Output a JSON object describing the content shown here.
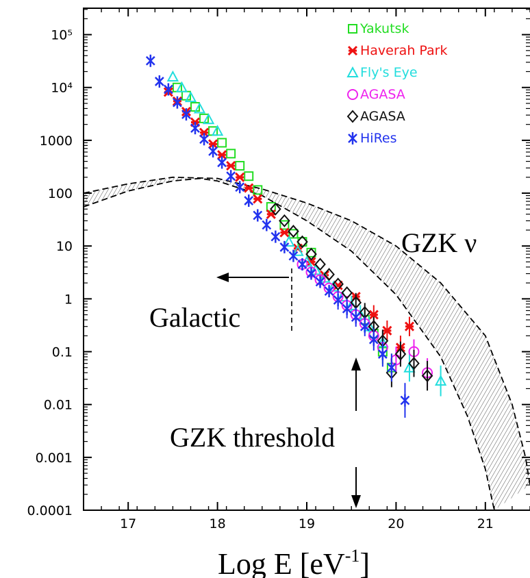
{
  "chart_data": {
    "type": "scatter",
    "xlabel": "Log E [eV",
    "xlabel_sup": "-1",
    "xlabel_end": "]",
    "x_ticks": [
      "17",
      "18",
      "19",
      "20",
      "21"
    ],
    "y_ticks": [
      "0.0001",
      "0.001",
      "0.01",
      "0.1",
      "1",
      "10",
      "100",
      "1000",
      "10⁴",
      "10⁵"
    ],
    "xlim": [
      16.5,
      21.5
    ],
    "ylim": [
      0.0001,
      316227
    ],
    "yscale": "log",
    "legend_position": "top-right",
    "series": [
      {
        "name": "Yakutsk",
        "marker": "square",
        "color": "#22dd22",
        "points": [
          [
            17.55,
            10000
          ],
          [
            17.65,
            7000
          ],
          [
            17.75,
            4300
          ],
          [
            17.85,
            2600
          ],
          [
            17.95,
            1500
          ],
          [
            18.05,
            900
          ],
          [
            18.15,
            560
          ],
          [
            18.25,
            330
          ],
          [
            18.35,
            210
          ],
          [
            18.45,
            115
          ],
          [
            18.6,
            55
          ],
          [
            18.75,
            25
          ],
          [
            18.85,
            17
          ],
          [
            18.95,
            12
          ],
          [
            19.05,
            7.5
          ],
          [
            19.65,
            0.4
          ],
          [
            19.75,
            0.22
          ],
          [
            19.85,
            0.1
          ],
          [
            19.95,
            0.05
          ]
        ]
      },
      {
        "name": "Haverah Park",
        "marker": "x-bold",
        "color": "#ee1111",
        "points": [
          [
            17.45,
            8200
          ],
          [
            17.55,
            5500
          ],
          [
            17.65,
            3500
          ],
          [
            17.75,
            2200
          ],
          [
            17.85,
            1400
          ],
          [
            17.95,
            850
          ],
          [
            18.05,
            530
          ],
          [
            18.15,
            330
          ],
          [
            18.25,
            200
          ],
          [
            18.35,
            125
          ],
          [
            18.45,
            78
          ],
          [
            18.6,
            40
          ],
          [
            18.75,
            18
          ],
          [
            18.9,
            9
          ],
          [
            19.05,
            5
          ],
          [
            19.2,
            2.8
          ],
          [
            19.35,
            1.8
          ],
          [
            19.55,
            1.1
          ],
          [
            19.75,
            0.5
          ],
          [
            19.9,
            0.25
          ],
          [
            20.05,
            0.12
          ],
          [
            20.15,
            0.3
          ]
        ]
      },
      {
        "name": "Fly's Eye",
        "marker": "triangle",
        "color": "#22dddd",
        "points": [
          [
            17.5,
            16000
          ],
          [
            17.6,
            10000
          ],
          [
            17.7,
            6500
          ],
          [
            17.8,
            4000
          ],
          [
            17.9,
            2500
          ],
          [
            18.0,
            1500
          ],
          [
            18.8,
            12
          ],
          [
            18.9,
            8
          ],
          [
            19.0,
            5
          ],
          [
            19.1,
            3.5
          ],
          [
            19.2,
            2.5
          ],
          [
            19.3,
            1.7
          ],
          [
            19.4,
            1.1
          ],
          [
            19.5,
            0.75
          ],
          [
            19.6,
            0.5
          ],
          [
            19.7,
            0.3
          ],
          [
            19.85,
            0.15
          ],
          [
            20.15,
            0.05
          ],
          [
            20.5,
            0.028
          ]
        ]
      },
      {
        "name": "AGASA",
        "marker": "circle",
        "color": "#ee22ee",
        "points": [
          [
            18.95,
            4.5
          ],
          [
            19.05,
            3.2
          ],
          [
            19.15,
            2.3
          ],
          [
            19.25,
            1.6
          ],
          [
            19.35,
            1.1
          ],
          [
            19.45,
            0.75
          ],
          [
            19.55,
            0.5
          ],
          [
            19.65,
            0.34
          ],
          [
            19.75,
            0.2
          ],
          [
            19.85,
            0.12
          ],
          [
            20.0,
            0.07
          ],
          [
            20.2,
            0.1
          ],
          [
            20.35,
            0.04
          ]
        ]
      },
      {
        "name": "AGASA",
        "marker": "diamond",
        "color": "#111111",
        "points": [
          [
            18.65,
            50
          ],
          [
            18.75,
            30
          ],
          [
            18.85,
            19
          ],
          [
            18.95,
            12
          ],
          [
            19.05,
            7
          ],
          [
            19.15,
            4.5
          ],
          [
            19.25,
            2.9
          ],
          [
            19.35,
            1.9
          ],
          [
            19.45,
            1.3
          ],
          [
            19.55,
            0.85
          ],
          [
            19.65,
            0.55
          ],
          [
            19.75,
            0.3
          ],
          [
            19.85,
            0.16
          ],
          [
            19.95,
            0.04
          ],
          [
            20.05,
            0.09
          ],
          [
            20.2,
            0.06
          ],
          [
            20.35,
            0.035
          ]
        ]
      },
      {
        "name": "HiRes",
        "marker": "star",
        "color": "#2233ee",
        "points": [
          [
            17.25,
            32000
          ],
          [
            17.35,
            13000
          ],
          [
            17.45,
            9200
          ],
          [
            17.55,
            5200
          ],
          [
            17.65,
            3100
          ],
          [
            17.75,
            1700
          ],
          [
            17.85,
            1050
          ],
          [
            17.95,
            620
          ],
          [
            18.05,
            380
          ],
          [
            18.15,
            210
          ],
          [
            18.25,
            130
          ],
          [
            18.35,
            72
          ],
          [
            18.45,
            38
          ],
          [
            18.55,
            25
          ],
          [
            18.65,
            15
          ],
          [
            18.75,
            9.5
          ],
          [
            18.85,
            6.5
          ],
          [
            18.95,
            4.5
          ],
          [
            19.05,
            3
          ],
          [
            19.15,
            2.1
          ],
          [
            19.25,
            1.4
          ],
          [
            19.35,
            0.95
          ],
          [
            19.45,
            0.65
          ],
          [
            19.55,
            0.45
          ],
          [
            19.65,
            0.3
          ],
          [
            19.75,
            0.17
          ],
          [
            19.85,
            0.09
          ],
          [
            19.95,
            0.05
          ],
          [
            20.1,
            0.012
          ]
        ]
      }
    ],
    "gzk_band": {
      "upper": [
        [
          16.5,
          100
        ],
        [
          17.0,
          150
        ],
        [
          17.5,
          200
        ],
        [
          18.0,
          190
        ],
        [
          18.5,
          120
        ],
        [
          19.0,
          65
        ],
        [
          19.5,
          30
        ],
        [
          20.0,
          10
        ],
        [
          20.5,
          2
        ],
        [
          21.0,
          0.2
        ],
        [
          21.3,
          0.01
        ],
        [
          21.45,
          0.001
        ],
        [
          21.5,
          0.0003
        ]
      ],
      "lower": [
        [
          16.5,
          55
        ],
        [
          17.0,
          110
        ],
        [
          17.5,
          170
        ],
        [
          17.8,
          190
        ],
        [
          18.0,
          170
        ],
        [
          18.5,
          90
        ],
        [
          19.0,
          30
        ],
        [
          19.5,
          8
        ],
        [
          20.0,
          1.2
        ],
        [
          20.5,
          0.08
        ],
        [
          20.8,
          0.006
        ],
        [
          21.0,
          0.0006
        ],
        [
          21.1,
          0.0001
        ]
      ]
    },
    "annotations": {
      "gzk_nu": "GZK ν",
      "galactic": "Galactic",
      "gzk_threshold": "GZK threshold"
    }
  }
}
